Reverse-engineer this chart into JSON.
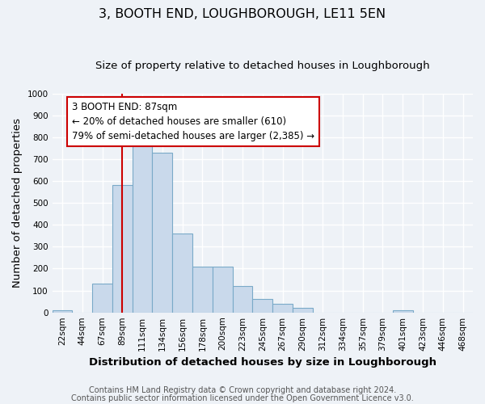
{
  "title": "3, BOOTH END, LOUGHBOROUGH, LE11 5EN",
  "subtitle": "Size of property relative to detached houses in Loughborough",
  "xlabel": "Distribution of detached houses by size in Loughborough",
  "ylabel": "Number of detached properties",
  "bin_labels": [
    "22sqm",
    "44sqm",
    "67sqm",
    "89sqm",
    "111sqm",
    "134sqm",
    "156sqm",
    "178sqm",
    "200sqm",
    "223sqm",
    "245sqm",
    "267sqm",
    "290sqm",
    "312sqm",
    "334sqm",
    "357sqm",
    "379sqm",
    "401sqm",
    "423sqm",
    "446sqm",
    "468sqm"
  ],
  "bar_heights": [
    10,
    0,
    130,
    580,
    770,
    730,
    360,
    210,
    210,
    120,
    60,
    40,
    20,
    0,
    0,
    0,
    0,
    10,
    0,
    0,
    0
  ],
  "bar_color": "#c9d9eb",
  "bar_edge_color": "#7aaac8",
  "vline_x_index": 3,
  "vline_color": "#cc0000",
  "annotation_text": "3 BOOTH END: 87sqm\n← 20% of detached houses are smaller (610)\n79% of semi-detached houses are larger (2,385) →",
  "annotation_box_color": "#ffffff",
  "annotation_box_edge_color": "#cc0000",
  "ylim": [
    0,
    1000
  ],
  "yticks": [
    0,
    100,
    200,
    300,
    400,
    500,
    600,
    700,
    800,
    900,
    1000
  ],
  "footer_line1": "Contains HM Land Registry data © Crown copyright and database right 2024.",
  "footer_line2": "Contains public sector information licensed under the Open Government Licence v3.0.",
  "bg_color": "#eef2f7",
  "grid_color": "#ffffff",
  "title_fontsize": 11.5,
  "subtitle_fontsize": 9.5,
  "axis_label_fontsize": 9.5,
  "tick_fontsize": 7.5,
  "footer_fontsize": 7,
  "annotation_fontsize": 8.5
}
